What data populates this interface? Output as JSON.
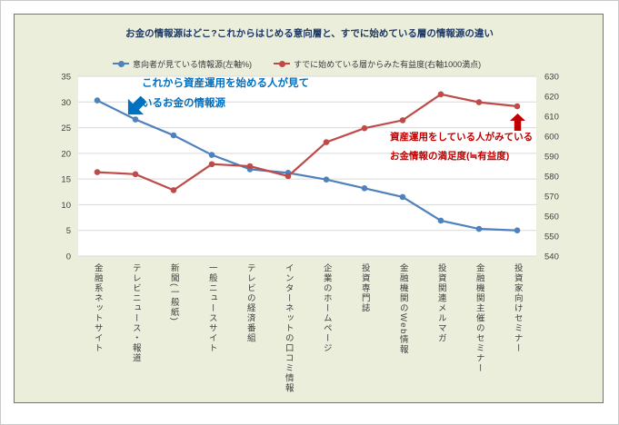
{
  "page": {
    "title": "お金の情報源はどこ?これからはじめる意向層と、すでに始めている層の情報源の違い"
  },
  "chart_data": {
    "type": "line",
    "title": "お金の情報源はどこ?これからはじめる意向層と、すでに始めている層の情報源の違い",
    "categories": [
      "金融系ネットサイト",
      "テレビニュース・報道",
      "新聞(一般紙)",
      "一般ニュースサイト",
      "テレビの経済番組",
      "インターネットの口コミ情報",
      "企業のホームページ",
      "投資専門誌",
      "金融機関のWeb情報",
      "投資関連メルマガ",
      "金融機関主催のセミナー",
      "投資家向けセミナー"
    ],
    "series": [
      {
        "name": "意向者が見ている情報源(左軸%)",
        "axis": "left",
        "color": "#4f81bd",
        "values": [
          30.3,
          26.6,
          23.5,
          19.7,
          16.9,
          16.2,
          14.9,
          13.2,
          11.5,
          6.9,
          5.3,
          5.0
        ]
      },
      {
        "name": "すでに始めている層からみた有益度(右軸1000満点)",
        "axis": "right",
        "color": "#be4b48",
        "values": [
          582,
          581,
          573,
          586,
          585,
          580,
          597,
          604,
          608,
          621,
          617,
          615
        ]
      }
    ],
    "left_axis": {
      "min": 0,
      "max": 35,
      "step": 5
    },
    "right_axis": {
      "min": 540,
      "max": 630,
      "step": 10
    },
    "grid": true,
    "legend_position": "top",
    "x_labels_orientation": "vertical",
    "annotations": {
      "intender": {
        "line1": "これから資産運用を始める人が見て",
        "line2": "いるお金の情報源",
        "color": "#0070c0"
      },
      "experienced": {
        "line1": "資産運用をしている人がみている",
        "line2": "お金情報の満足度(≒有益度)",
        "color": "#c00000"
      }
    },
    "colors": {
      "card_background": "#eaeedb",
      "card_border": "#707d52",
      "plot_background": "#ffffff",
      "gridline": "#d9d9d9",
      "title": "#1f3864"
    }
  }
}
